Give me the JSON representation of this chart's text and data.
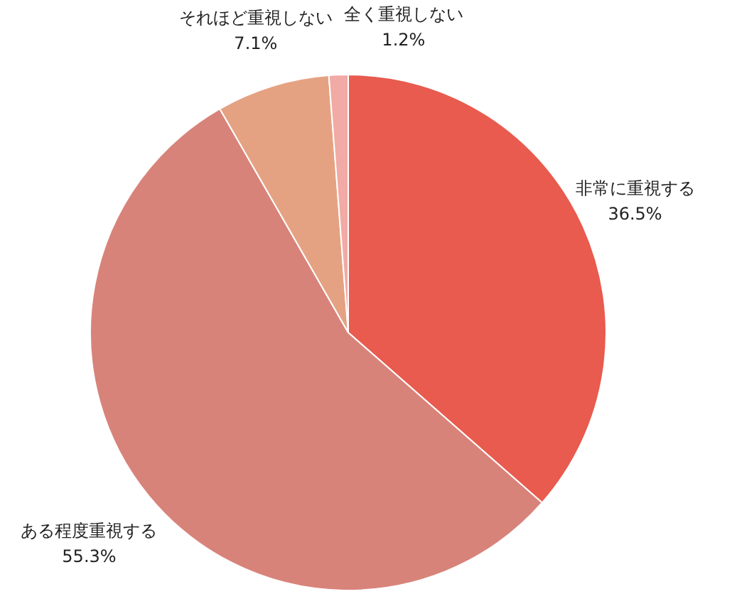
{
  "chart_data": {
    "type": "pie",
    "categories": [
      "非常に重視する",
      "ある程度重視する",
      "それほど重視しない",
      "全く重視しない"
    ],
    "values": [
      36.5,
      55.3,
      7.1,
      1.2
    ],
    "colors": [
      "#e85b4e",
      "#d8837a",
      "#e5a283",
      "#f1aaa5"
    ],
    "value_labels": [
      "36.5%",
      "55.3%",
      "7.1%",
      "1.2%"
    ],
    "legend": false
  }
}
